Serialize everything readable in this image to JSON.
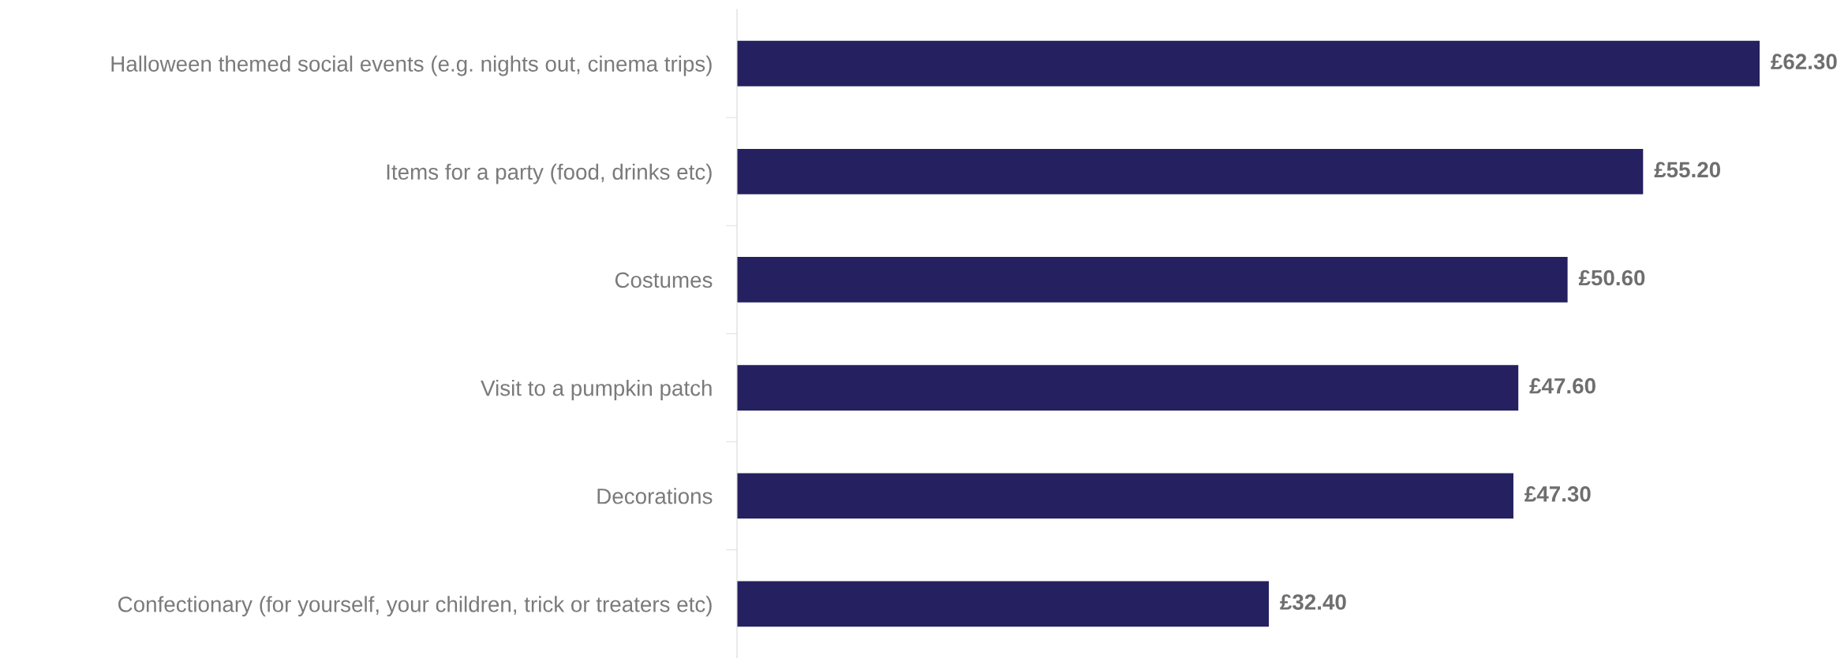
{
  "chart_data": {
    "type": "bar",
    "orientation": "horizontal",
    "categories": [
      "Halloween themed social events (e.g. nights out, cinema trips)",
      "Items for a party (food, drinks etc)",
      "Costumes",
      "Visit to a pumpkin patch",
      "Decorations",
      "Confectionary (for yourself, your children, trick or treaters etc)"
    ],
    "values": [
      62.3,
      55.2,
      50.6,
      47.6,
      47.3,
      32.4
    ],
    "value_labels": [
      "£62.30",
      "£55.20",
      "£50.60",
      "£47.60",
      "£47.30",
      "£32.40"
    ],
    "color": "#252060",
    "grid": false,
    "legend": false,
    "tick_labels": "y"
  }
}
